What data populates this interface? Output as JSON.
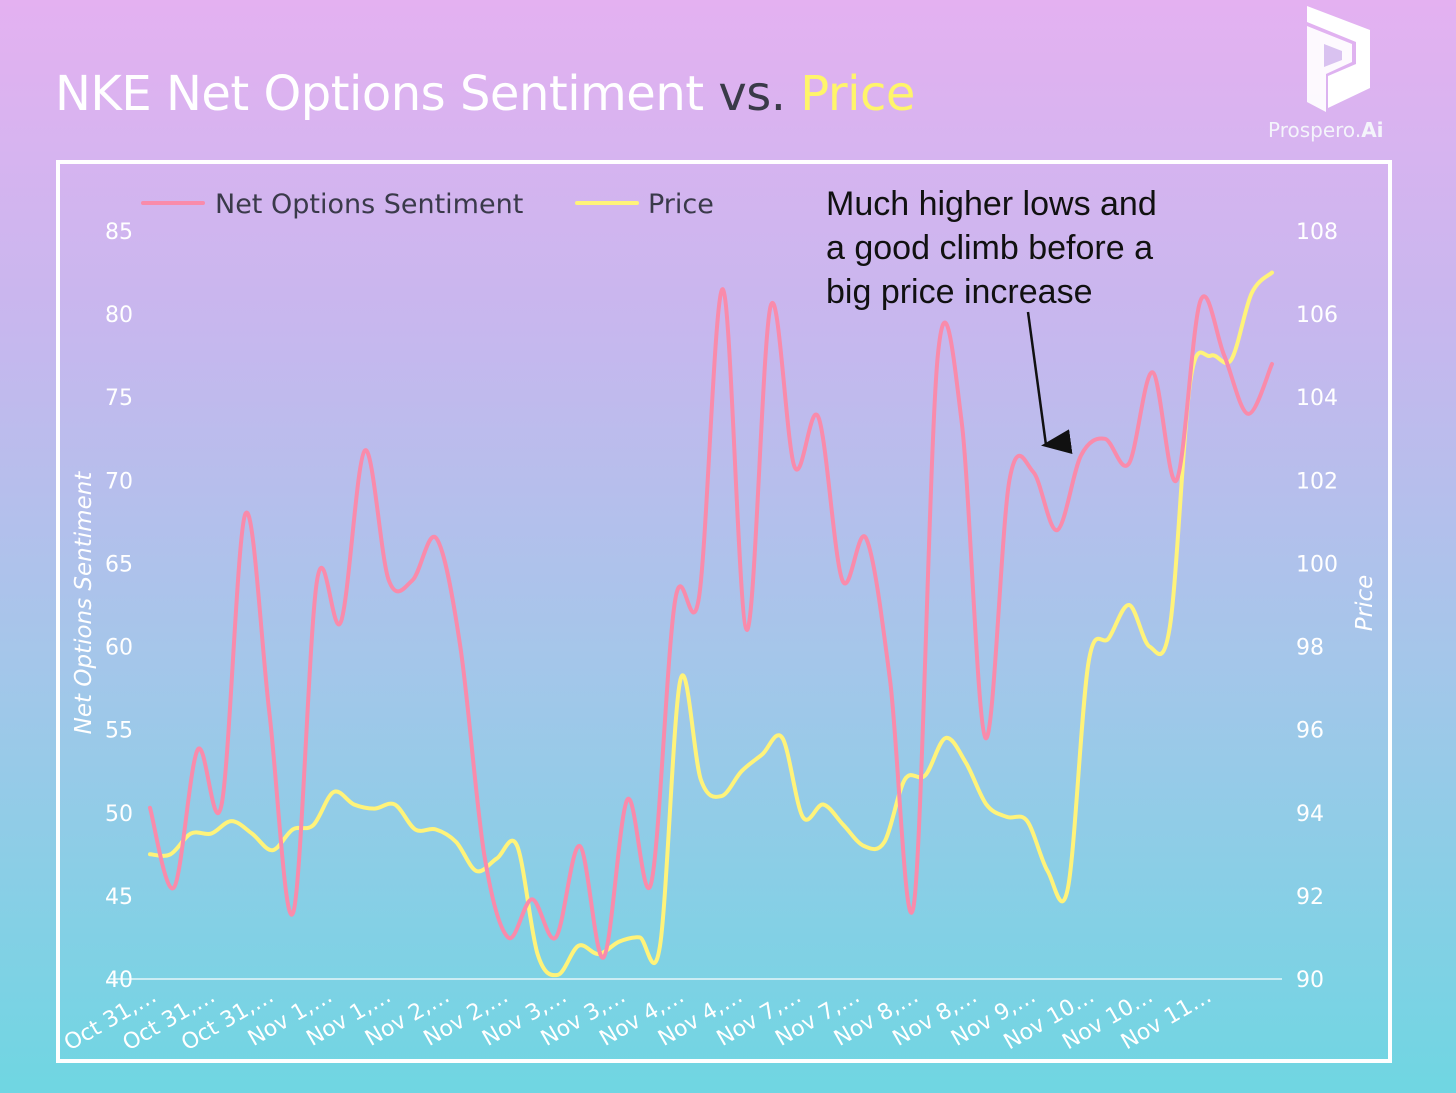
{
  "header": {
    "title_main": "NKE Net Options Sentiment",
    "title_vs": "vs.",
    "title_price": "Price",
    "logo_text": "Prospero.",
    "logo_ai": "Ai"
  },
  "colors": {
    "sentiment": "#f98bab",
    "price": "#fff37a",
    "title_vs": "#3a3a48",
    "title_price": "#fff56a"
  },
  "chart_data": {
    "type": "line",
    "title": "NKE Net Options Sentiment vs. Price",
    "x_tick_labels": [
      "Oct 31,…",
      "Oct 31,…",
      "Oct 31,…",
      "Nov 1,…",
      "Nov 1,…",
      "Nov 2,…",
      "Nov 2,…",
      "Nov 3,…",
      "Nov 3,…",
      "Nov 4,…",
      "Nov 4,…",
      "Nov 7,…",
      "Nov 7,…",
      "Nov 8,…",
      "Nov 8,…",
      "Nov 9,…",
      "Nov 10…",
      "Nov 10…",
      "Nov 11…"
    ],
    "y_left": {
      "label": "Net Options Sentiment",
      "min": 40,
      "max": 85,
      "ticks": [
        40,
        45,
        50,
        55,
        60,
        65,
        70,
        75,
        80,
        85
      ]
    },
    "y_right": {
      "label": "Price",
      "min": 90,
      "max": 108,
      "ticks": [
        90,
        92,
        94,
        96,
        98,
        100,
        102,
        104,
        106,
        108
      ]
    },
    "legend": {
      "position": "top-left"
    },
    "grid": false,
    "series": [
      {
        "name": "Net Options Sentiment",
        "axis": "left",
        "values": [
          50.3,
          45.5,
          53.8,
          50.5,
          68,
          56,
          44,
          64,
          61.5,
          71.8,
          64,
          64,
          66.5,
          60,
          47.5,
          42.5,
          44.8,
          42.5,
          48,
          41.3,
          50.8,
          45.8,
          62.8,
          63,
          81.5,
          61,
          80.5,
          70.8,
          73.8,
          64,
          66.5,
          58,
          44.5,
          77.5,
          73.5,
          54.5,
          70,
          70.5,
          67,
          71.5,
          72.5,
          71,
          76.5,
          70,
          80.8,
          77.5,
          74,
          77
        ]
      },
      {
        "name": "Price",
        "axis": "right",
        "values": [
          93,
          93,
          93.5,
          93.5,
          93.8,
          93.5,
          93.1,
          93.6,
          93.7,
          94.5,
          94.2,
          94.1,
          94.2,
          93.6,
          93.6,
          93.3,
          92.6,
          92.9,
          93.2,
          90.6,
          90.1,
          90.8,
          90.6,
          90.9,
          91,
          90.8,
          97.2,
          94.8,
          94.4,
          95,
          95.4,
          95.8,
          93.9,
          94.2,
          93.7,
          93.2,
          93.3,
          94.8,
          94.9,
          95.8,
          95.2,
          94.2,
          93.9,
          93.8,
          92.6,
          92.2,
          97.6,
          98.2,
          99,
          98,
          98.5,
          104.4,
          105,
          104.9,
          106.5,
          107
        ]
      }
    ],
    "annotation": [
      "Much higher lows and",
      "a good climb before a",
      "big price increase"
    ]
  }
}
